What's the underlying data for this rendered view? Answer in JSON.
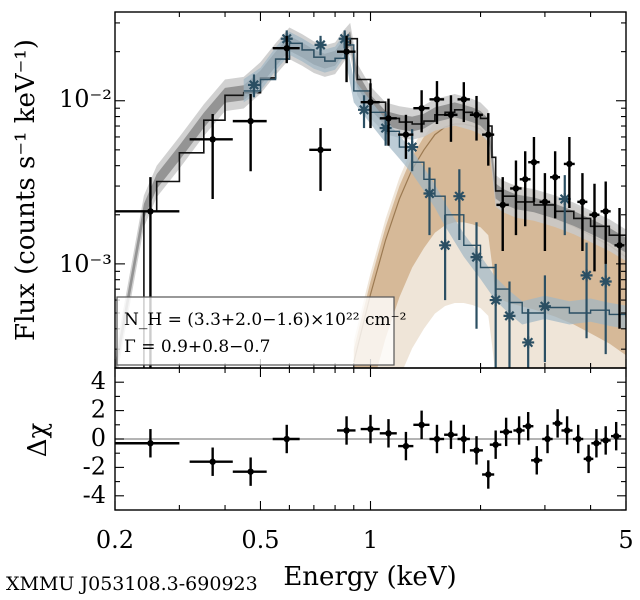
{
  "source_label": "XMMU J053108.3-690923",
  "chart_data": [
    {
      "type": "line",
      "panel": "spectrum",
      "xlabel": "Energy (keV)",
      "ylabel": "Flux (counts s⁻¹ keV⁻¹)",
      "xscale": "log",
      "yscale": "log",
      "xlim": [
        0.2,
        5
      ],
      "ylim": [
        0.00023,
        0.035
      ],
      "ytick_labels": [
        "10⁻²",
        "10⁻³"
      ],
      "ytick_values": [
        0.01,
        0.001
      ],
      "legend": {
        "nh_text": "N_H = (3.3+2.0−1.6)×10²² cm⁻²",
        "gamma_text": "Γ = 0.9+0.8−0.7",
        "placement": "bottom-left"
      },
      "colors": {
        "data": "#000000",
        "total_model": "#1a1a1a",
        "background": "#2b4f63",
        "source_model": "#b08a5c"
      },
      "series": [
        {
          "marker": "point",
          "x": [
            0.25,
            0.37,
            0.47,
            0.59,
            0.73,
            0.86,
            1.0,
            1.12,
            1.25,
            1.38,
            1.52,
            1.66,
            1.8,
            1.95,
            2.1,
            2.3,
            2.5,
            2.65,
            2.8,
            3.0,
            3.2,
            3.5,
            3.8,
            4.1,
            4.4,
            4.8
          ],
          "xerr": [
            0.05,
            0.05,
            0.05,
            0.05,
            0.05,
            0.05,
            0.06,
            0.06,
            0.06,
            0.07,
            0.07,
            0.07,
            0.07,
            0.08,
            0.08,
            0.09,
            0.09,
            0.09,
            0.1,
            0.1,
            0.1,
            0.12,
            0.12,
            0.13,
            0.14,
            0.15
          ],
          "y": [
            0.0021,
            0.0058,
            0.0075,
            0.021,
            0.005,
            0.02,
            0.0098,
            0.0078,
            0.0062,
            0.009,
            0.0102,
            0.0082,
            0.0102,
            0.0082,
            0.0062,
            0.0023,
            0.0029,
            0.0033,
            0.0042,
            0.0024,
            0.0034,
            0.0041,
            0.0024,
            0.002,
            0.0021,
            0.0013
          ],
          "yerr_lo": [
            0.0021,
            0.0033,
            0.0038,
            0.004,
            0.0022,
            0.007,
            0.003,
            0.0025,
            0.0018,
            0.0026,
            0.003,
            0.0026,
            0.0028,
            0.0025,
            0.0022,
            0.0011,
            0.0014,
            0.0016,
            0.0018,
            0.0012,
            0.0015,
            0.0019,
            0.0012,
            0.0011,
            0.0011,
            0.0009
          ],
          "yerr_hi": [
            0.0013,
            0.0025,
            0.0035,
            0.004,
            0.0018,
            0.005,
            0.003,
            0.0025,
            0.002,
            0.0026,
            0.003,
            0.0026,
            0.0028,
            0.0025,
            0.0022,
            0.0011,
            0.0014,
            0.0016,
            0.0018,
            0.0012,
            0.0015,
            0.0019,
            0.0012,
            0.0011,
            0.0011,
            0.0009
          ]
        },
        {
          "marker": "star",
          "x": [
            0.48,
            0.59,
            0.73,
            0.85,
            0.96,
            1.1,
            1.3,
            1.45,
            1.6,
            1.75,
            1.95,
            2.2,
            2.4,
            2.7,
            3.0,
            3.4,
            3.9,
            4.4
          ],
          "y": [
            0.0125,
            0.024,
            0.022,
            0.024,
            0.0088,
            0.0068,
            0.0052,
            0.0027,
            0.0013,
            0.0026,
            0.0011,
            0.0006,
            0.00048,
            0.00033,
            0.00055,
            0.0025,
            0.00085,
            0.00078
          ],
          "yerr_lo": [
            0.002,
            0.003,
            0.003,
            0.003,
            0.002,
            0.0015,
            0.0015,
            0.0012,
            0.0007,
            0.0012,
            0.0007,
            0.0004,
            0.0003,
            0.0002,
            0.0003,
            0.001,
            0.0005,
            0.0005
          ],
          "yerr_hi": [
            0.002,
            0.003,
            0.003,
            0.003,
            0.002,
            0.0015,
            0.0015,
            0.0012,
            0.0007,
            0.0012,
            0.0007,
            0.0004,
            0.0003,
            0.0002,
            0.0003,
            0.001,
            0.0005,
            0.0005
          ]
        },
        {
          "marker": "line_band",
          "x": [
            0.2,
            0.24,
            0.26,
            0.3,
            0.35,
            0.4,
            0.45,
            0.5,
            0.55,
            0.6,
            0.65,
            0.7,
            0.75,
            0.8,
            0.85,
            0.88,
            0.92,
            1.0,
            1.1,
            1.2,
            1.3,
            1.4,
            1.5,
            1.6,
            1.7,
            1.8,
            1.9,
            2.0,
            2.1,
            2.15,
            2.2,
            2.3,
            2.5,
            2.8,
            3.2,
            3.6,
            4.0,
            4.5,
            5.0
          ],
          "y": [
            0.00022,
            0.0021,
            0.0032,
            0.0048,
            0.0076,
            0.0108,
            0.0112,
            0.0138,
            0.018,
            0.0225,
            0.0205,
            0.0185,
            0.0175,
            0.0182,
            0.022,
            0.024,
            0.0135,
            0.0098,
            0.0078,
            0.0074,
            0.0072,
            0.0075,
            0.0082,
            0.0085,
            0.0088,
            0.0085,
            0.0082,
            0.0078,
            0.007,
            0.0045,
            0.0028,
            0.0026,
            0.0024,
            0.0023,
            0.0021,
            0.0019,
            0.0017,
            0.0015,
            0.0013
          ]
        },
        {
          "marker": "line_band",
          "x": [
            0.9,
            1.0,
            1.1,
            1.2,
            1.3,
            1.4,
            1.5,
            1.6,
            1.7,
            1.8,
            1.9,
            2.0,
            2.1,
            2.15,
            2.2,
            2.4,
            2.8,
            3.2,
            3.6,
            4.0,
            4.5,
            5.0
          ],
          "y": [
            0.00025,
            0.00065,
            0.0014,
            0.0025,
            0.0038,
            0.005,
            0.0062,
            0.0069,
            0.0072,
            0.0072,
            0.007,
            0.0067,
            0.006,
            0.004,
            0.0025,
            0.0023,
            0.0021,
            0.0019,
            0.0017,
            0.0015,
            0.0013,
            0.0011
          ]
        },
        {
          "marker": "line",
          "x": [
            0.45,
            0.5,
            0.55,
            0.6,
            0.65,
            0.7,
            0.75,
            0.8,
            0.85,
            0.9,
            1.0,
            1.1,
            1.2,
            1.3,
            1.4,
            1.5,
            1.6,
            1.8,
            2.0,
            2.2,
            2.4,
            2.6,
            3.0,
            3.5,
            4.0,
            4.5,
            5.0
          ],
          "y": [
            0.0115,
            0.0135,
            0.018,
            0.0225,
            0.0205,
            0.0185,
            0.0175,
            0.0182,
            0.022,
            0.0115,
            0.0085,
            0.0065,
            0.0052,
            0.0042,
            0.0033,
            0.0026,
            0.002,
            0.0013,
            0.00095,
            0.0007,
            0.00058,
            0.0005,
            0.00054,
            0.0005,
            0.00052,
            0.00049,
            0.00047
          ]
        }
      ]
    },
    {
      "type": "scatter",
      "panel": "residuals",
      "ylabel": "Δχ",
      "xscale": "log",
      "xlim": [
        0.2,
        5
      ],
      "ylim": [
        -5,
        5
      ],
      "yticks": [
        4,
        2,
        0,
        -2,
        -4
      ],
      "xtick_labels": [
        "0.2",
        "0.5",
        "1",
        "5"
      ],
      "xtick_values": [
        0.2,
        0.5,
        1,
        5
      ],
      "series": [
        {
          "x": [
            0.25,
            0.37,
            0.47,
            0.59,
            0.86,
            1.0,
            1.12,
            1.25,
            1.38,
            1.52,
            1.66,
            1.8,
            1.95,
            2.1,
            2.2,
            2.35,
            2.55,
            2.7,
            2.85,
            3.05,
            3.25,
            3.45,
            3.7,
            3.95,
            4.15,
            4.4,
            4.7
          ],
          "xerr": [
            0.05,
            0.05,
            0.05,
            0.05,
            0.05,
            0.06,
            0.06,
            0.06,
            0.07,
            0.07,
            0.07,
            0.07,
            0.08,
            0.08,
            0.08,
            0.09,
            0.09,
            0.09,
            0.1,
            0.1,
            0.1,
            0.12,
            0.12,
            0.12,
            0.13,
            0.14,
            0.15
          ],
          "y": [
            -0.3,
            -1.6,
            -2.3,
            0.0,
            0.6,
            0.7,
            0.4,
            -0.5,
            1.0,
            0.0,
            0.3,
            0.0,
            -0.8,
            -2.5,
            -0.4,
            0.5,
            0.6,
            0.9,
            -1.5,
            0.0,
            1.1,
            0.6,
            0.0,
            -1.4,
            -0.3,
            -0.1,
            0.2
          ],
          "yerr": [
            1,
            1,
            1,
            1,
            1,
            1,
            1,
            1,
            1,
            1,
            1,
            1,
            1,
            1,
            1,
            1,
            1,
            1,
            1,
            1,
            1,
            1,
            1,
            1,
            1,
            1,
            1
          ]
        }
      ]
    }
  ]
}
